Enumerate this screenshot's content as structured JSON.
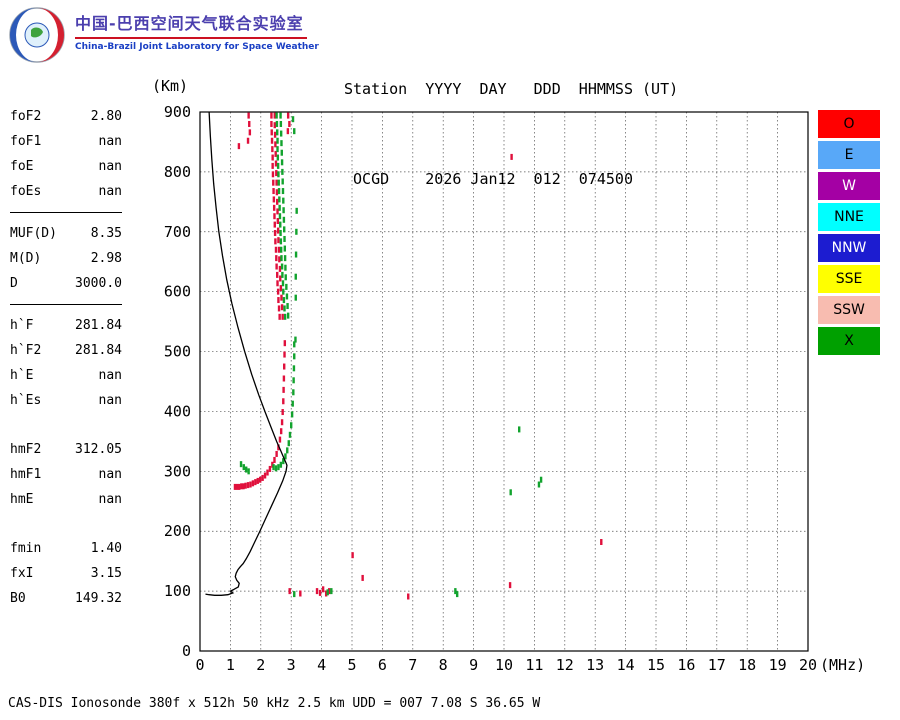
{
  "header": {
    "lab_title_cn": "中国-巴西空间天气联合实验室",
    "lab_title_en": "China-Brazil Joint Laboratory for Space Weather",
    "station_columns": "Station  YYYY  DAY   DDD  HHMMSS (UT)",
    "station_values": " OCGD    2026 Jan12  012  074500"
  },
  "params": {
    "rows": [
      {
        "name": "foF2",
        "value": "2.80"
      },
      {
        "name": "foF1",
        "value": "nan"
      },
      {
        "name": "foE",
        "value": "nan"
      },
      {
        "name": "foEs",
        "value": "nan"
      },
      {
        "name": "MUF(D)",
        "value": "8.35"
      },
      {
        "name": "M(D)",
        "value": "2.98"
      },
      {
        "name": "D",
        "value": "3000.0"
      },
      {
        "name": "h`F",
        "value": "281.84"
      },
      {
        "name": "h`F2",
        "value": "281.84"
      },
      {
        "name": "h`E",
        "value": "nan"
      },
      {
        "name": "h`Es",
        "value": "nan"
      },
      {
        "name": "hmF2",
        "value": "312.05"
      },
      {
        "name": "hmF1",
        "value": "nan"
      },
      {
        "name": "hmE",
        "value": "nan"
      },
      {
        "name": "fmin",
        "value": "1.40"
      },
      {
        "name": "fxI",
        "value": "3.15"
      },
      {
        "name": "B0",
        "value": "149.32"
      }
    ]
  },
  "legend": [
    {
      "label": "O",
      "color": "#ff0000",
      "text_color": "#000000"
    },
    {
      "label": "E",
      "color": "#58a8f8",
      "text_color": "#000000"
    },
    {
      "label": "W",
      "color": "#a400a4",
      "text_color": "#ffffff"
    },
    {
      "label": "NNE",
      "color": "#00ffff",
      "text_color": "#000000"
    },
    {
      "label": "NNW",
      "color": "#1c1cd0",
      "text_color": "#ffffff"
    },
    {
      "label": "SSE",
      "color": "#ffff00",
      "text_color": "#000000"
    },
    {
      "label": "SSW",
      "color": "#f8bcb0",
      "text_color": "#000000"
    },
    {
      "label": "X",
      "color": "#00a000",
      "text_color": "#000000"
    }
  ],
  "footer": {
    "text": "CAS-DIS Ionosonde 380f x 512h 50 kHz 2.5 km UDD = 007 7.08 S 36.65 W"
  },
  "chart_data": {
    "type": "scatter",
    "title": "Ionogram OCGD 2026 Jan12 074500 UT",
    "xlabel": "(MHz)",
    "ylabel": "(Km)",
    "xlim": [
      0,
      20
    ],
    "ylim": [
      0,
      900
    ],
    "xticks": [
      0,
      1,
      2,
      3,
      4,
      5,
      6,
      7,
      8,
      9,
      10,
      11,
      12,
      13,
      14,
      15,
      16,
      17,
      18,
      19,
      20
    ],
    "yticks": [
      0,
      100,
      200,
      300,
      400,
      500,
      600,
      700,
      800,
      900
    ],
    "grid": true,
    "legend_position": "right",
    "series": [
      {
        "name": "O-mode echo trace",
        "color": "#e0103c",
        "marker": "vdash",
        "points": [
          [
            1.15,
            274
          ],
          [
            1.22,
            274
          ],
          [
            1.29,
            274
          ],
          [
            1.36,
            275
          ],
          [
            1.43,
            275
          ],
          [
            1.5,
            276
          ],
          [
            1.58,
            277
          ],
          [
            1.66,
            278
          ],
          [
            1.74,
            280
          ],
          [
            1.82,
            282
          ],
          [
            1.9,
            284
          ],
          [
            1.98,
            286
          ],
          [
            2.06,
            289
          ],
          [
            2.14,
            293
          ],
          [
            2.22,
            298
          ],
          [
            2.3,
            304
          ],
          [
            2.38,
            311
          ],
          [
            2.45,
            319
          ],
          [
            2.52,
            329
          ],
          [
            2.58,
            340
          ],
          [
            2.63,
            353
          ],
          [
            2.67,
            367
          ],
          [
            2.7,
            382
          ],
          [
            2.72,
            399
          ],
          [
            2.74,
            417
          ],
          [
            2.75,
            436
          ],
          [
            2.76,
            455
          ],
          [
            2.77,
            475
          ],
          [
            2.78,
            495
          ],
          [
            2.79,
            514
          ],
          [
            2.62,
            558
          ],
          [
            2.6,
            572
          ],
          [
            2.58,
            586
          ],
          [
            2.57,
            600
          ],
          [
            2.55,
            614
          ],
          [
            2.54,
            628
          ],
          [
            2.52,
            642
          ],
          [
            2.51,
            656
          ],
          [
            2.5,
            670
          ],
          [
            2.48,
            684
          ],
          [
            2.47,
            698
          ],
          [
            2.46,
            712
          ],
          [
            2.45,
            726
          ],
          [
            2.44,
            740
          ],
          [
            2.43,
            754
          ],
          [
            2.42,
            768
          ],
          [
            2.41,
            782
          ],
          [
            2.4,
            796
          ],
          [
            2.39,
            810
          ],
          [
            2.39,
            824
          ],
          [
            2.38,
            838
          ],
          [
            2.37,
            852
          ],
          [
            2.36,
            866
          ],
          [
            2.35,
            880
          ],
          [
            2.35,
            894
          ],
          [
            2.72,
            558
          ],
          [
            2.7,
            574
          ],
          [
            2.68,
            590
          ],
          [
            2.66,
            606
          ],
          [
            2.64,
            622
          ],
          [
            2.63,
            638
          ],
          [
            2.61,
            654
          ],
          [
            2.6,
            670
          ],
          [
            2.58,
            686
          ],
          [
            2.57,
            702
          ],
          [
            2.56,
            718
          ],
          [
            2.55,
            734
          ],
          [
            2.54,
            750
          ],
          [
            2.53,
            766
          ],
          [
            2.52,
            782
          ],
          [
            2.51,
            798
          ],
          [
            2.5,
            814
          ],
          [
            2.49,
            830
          ],
          [
            2.48,
            846
          ],
          [
            2.47,
            862
          ],
          [
            2.46,
            878
          ],
          [
            2.46,
            894
          ],
          [
            1.6,
            894
          ],
          [
            1.62,
            880
          ],
          [
            1.64,
            866
          ],
          [
            1.58,
            852
          ],
          [
            1.28,
            843
          ],
          [
            2.9,
            894
          ],
          [
            2.94,
            880
          ],
          [
            2.89,
            868
          ],
          [
            10.25,
            825
          ],
          [
            13.2,
            182
          ],
          [
            5.02,
            160
          ],
          [
            5.35,
            122
          ],
          [
            2.95,
            100
          ],
          [
            3.3,
            96
          ],
          [
            3.85,
            100
          ],
          [
            3.95,
            97
          ],
          [
            4.05,
            103
          ],
          [
            4.15,
            96
          ],
          [
            4.25,
            100
          ],
          [
            6.85,
            91
          ],
          [
            10.2,
            110
          ]
        ]
      },
      {
        "name": "X-mode echo trace",
        "color": "#12a32e",
        "marker": "vdash",
        "points": [
          [
            1.35,
            312
          ],
          [
            1.44,
            307
          ],
          [
            1.52,
            303
          ],
          [
            1.6,
            300
          ],
          [
            2.42,
            307
          ],
          [
            2.5,
            305
          ],
          [
            2.58,
            307
          ],
          [
            2.66,
            311
          ],
          [
            2.74,
            317
          ],
          [
            2.81,
            325
          ],
          [
            2.87,
            335
          ],
          [
            2.92,
            347
          ],
          [
            2.96,
            361
          ],
          [
            3.0,
            377
          ],
          [
            3.03,
            395
          ],
          [
            3.05,
            413
          ],
          [
            3.07,
            432
          ],
          [
            3.08,
            452
          ],
          [
            3.09,
            472
          ],
          [
            3.1,
            492
          ],
          [
            3.1,
            512
          ],
          [
            2.8,
            558
          ],
          [
            2.78,
            572
          ],
          [
            2.76,
            586
          ],
          [
            2.74,
            600
          ],
          [
            2.73,
            614
          ],
          [
            2.71,
            628
          ],
          [
            2.7,
            642
          ],
          [
            2.68,
            656
          ],
          [
            2.67,
            670
          ],
          [
            2.66,
            684
          ],
          [
            2.65,
            698
          ],
          [
            2.64,
            712
          ],
          [
            2.63,
            726
          ],
          [
            2.62,
            740
          ],
          [
            2.61,
            754
          ],
          [
            2.6,
            768
          ],
          [
            2.59,
            782
          ],
          [
            2.58,
            796
          ],
          [
            2.57,
            810
          ],
          [
            2.56,
            824
          ],
          [
            2.55,
            838
          ],
          [
            2.55,
            852
          ],
          [
            2.54,
            866
          ],
          [
            2.53,
            880
          ],
          [
            2.52,
            894
          ],
          [
            2.9,
            560
          ],
          [
            2.88,
            576
          ],
          [
            2.86,
            592
          ],
          [
            2.84,
            608
          ],
          [
            2.82,
            624
          ],
          [
            2.81,
            640
          ],
          [
            2.8,
            656
          ],
          [
            2.79,
            672
          ],
          [
            2.78,
            688
          ],
          [
            2.77,
            704
          ],
          [
            2.76,
            720
          ],
          [
            2.75,
            736
          ],
          [
            2.74,
            752
          ],
          [
            2.73,
            768
          ],
          [
            2.72,
            784
          ],
          [
            2.71,
            800
          ],
          [
            2.7,
            816
          ],
          [
            2.69,
            832
          ],
          [
            2.68,
            848
          ],
          [
            2.67,
            864
          ],
          [
            2.66,
            880
          ],
          [
            2.65,
            894
          ],
          [
            3.14,
            520
          ],
          [
            3.15,
            590
          ],
          [
            3.15,
            625
          ],
          [
            3.16,
            662
          ],
          [
            3.17,
            700
          ],
          [
            3.18,
            735
          ],
          [
            3.1,
            868
          ],
          [
            3.06,
            888
          ],
          [
            10.5,
            370
          ],
          [
            10.22,
            265
          ],
          [
            11.15,
            278
          ],
          [
            11.22,
            286
          ],
          [
            8.4,
            100
          ],
          [
            8.46,
            95
          ],
          [
            4.32,
            100
          ],
          [
            4.2,
            98
          ],
          [
            3.1,
            95
          ]
        ]
      },
      {
        "name": "electron density profile",
        "color": "#000000",
        "marker": "line",
        "points": [
          [
            0.3,
            900
          ],
          [
            0.34,
            860
          ],
          [
            0.39,
            820
          ],
          [
            0.45,
            780
          ],
          [
            0.53,
            740
          ],
          [
            0.62,
            700
          ],
          [
            0.74,
            660
          ],
          [
            0.88,
            620
          ],
          [
            1.05,
            580
          ],
          [
            1.25,
            540
          ],
          [
            1.47,
            500
          ],
          [
            1.7,
            462
          ],
          [
            1.93,
            428
          ],
          [
            2.15,
            398
          ],
          [
            2.35,
            372
          ],
          [
            2.52,
            350
          ],
          [
            2.66,
            334
          ],
          [
            2.76,
            322
          ],
          [
            2.83,
            314
          ],
          [
            2.86,
            310
          ],
          [
            2.83,
            300
          ],
          [
            2.72,
            284
          ],
          [
            2.55,
            264
          ],
          [
            2.35,
            242
          ],
          [
            2.15,
            220
          ],
          [
            1.97,
            200
          ],
          [
            1.8,
            182
          ],
          [
            1.65,
            166
          ],
          [
            1.52,
            154
          ],
          [
            1.42,
            146
          ],
          [
            1.33,
            141
          ],
          [
            1.25,
            136
          ],
          [
            1.19,
            130
          ],
          [
            1.16,
            124
          ],
          [
            1.21,
            118
          ],
          [
            1.29,
            113
          ],
          [
            1.26,
            107
          ],
          [
            1.12,
            103
          ],
          [
            1.0,
            100
          ],
          [
            1.08,
            97
          ],
          [
            0.92,
            94
          ],
          [
            0.7,
            93
          ],
          [
            0.48,
            93
          ],
          [
            0.3,
            94
          ],
          [
            0.18,
            95
          ]
        ]
      }
    ]
  }
}
